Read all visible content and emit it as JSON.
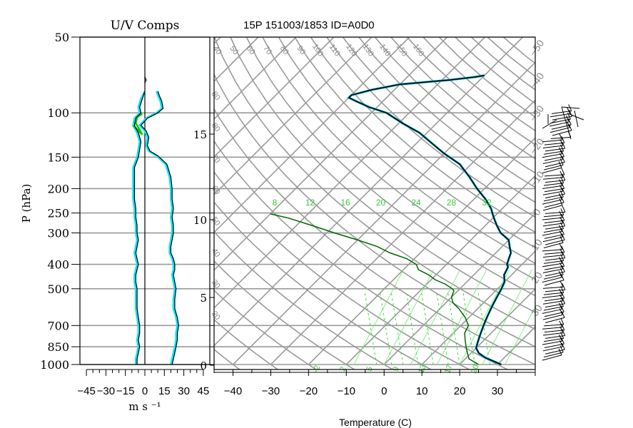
{
  "chart_data": [
    {
      "type": "line",
      "title": "U/V Comps",
      "xlabel": "m s ⁻¹",
      "ylabel": "P (hPa)",
      "xlim": [
        -50,
        50
      ],
      "x_tick_labels": [
        "−45",
        "−30",
        "−15",
        "0",
        "15",
        "30",
        "45"
      ],
      "x_tick_values": [
        -45,
        -30,
        -15,
        0,
        15,
        30,
        45
      ],
      "y_scale": "log",
      "ylim": [
        1000,
        50
      ],
      "y_tick_labels": [
        "50",
        "100",
        "150",
        "200",
        "250",
        "300",
        "400",
        "500",
        "700",
        "850",
        "1000"
      ],
      "y_tick_values": [
        50,
        100,
        150,
        200,
        250,
        300,
        400,
        500,
        700,
        850,
        1000
      ],
      "grid": true,
      "series": [
        {
          "color": "#00e5ff",
          "points": [
            [
              -7,
              1000
            ],
            [
              -7,
              950
            ],
            [
              -6,
              900
            ],
            [
              -5,
              850
            ],
            [
              -6,
              800
            ],
            [
              -5,
              750
            ],
            [
              -5,
              700
            ],
            [
              -6,
              650
            ],
            [
              -7,
              600
            ],
            [
              -7,
              550
            ],
            [
              -7,
              500
            ],
            [
              -8,
              470
            ],
            [
              -8,
              440
            ],
            [
              -7,
              420
            ],
            [
              -6,
              400
            ],
            [
              -7,
              380
            ],
            [
              -8,
              360
            ],
            [
              -7,
              340
            ],
            [
              -6,
              320
            ],
            [
              -7,
              300
            ],
            [
              -7,
              280
            ],
            [
              -8,
              260
            ],
            [
              -8,
              240
            ],
            [
              -9,
              220
            ],
            [
              -9,
              200
            ],
            [
              -9,
              180
            ],
            [
              -9,
              165
            ],
            [
              -6,
              150
            ],
            [
              -5,
              140
            ],
            [
              -4,
              130
            ],
            [
              -6,
              120
            ],
            [
              -9,
              112
            ],
            [
              -8,
              105
            ],
            [
              -4,
              100
            ],
            [
              -5,
              95
            ],
            [
              -3,
              88
            ],
            [
              0,
              82
            ]
          ]
        },
        {
          "color": "#00e5ff",
          "points": [
            [
              20,
              1000
            ],
            [
              21,
              950
            ],
            [
              22,
              900
            ],
            [
              23,
              850
            ],
            [
              24,
              800
            ],
            [
              24,
              750
            ],
            [
              25,
              700
            ],
            [
              24,
              650
            ],
            [
              22,
              600
            ],
            [
              22,
              550
            ],
            [
              23,
              500
            ],
            [
              22,
              470
            ],
            [
              21,
              440
            ],
            [
              22,
              420
            ],
            [
              22,
              400
            ],
            [
              21,
              380
            ],
            [
              19,
              360
            ],
            [
              19,
              340
            ],
            [
              20,
              320
            ],
            [
              21,
              300
            ],
            [
              21,
              280
            ],
            [
              20,
              260
            ],
            [
              21,
              240
            ],
            [
              20,
              220
            ],
            [
              20,
              200
            ],
            [
              19,
              180
            ],
            [
              16,
              160
            ],
            [
              9,
              148
            ],
            [
              3,
              142
            ],
            [
              1,
              135
            ],
            [
              2,
              125
            ],
            [
              0,
              118
            ],
            [
              -4,
              112
            ],
            [
              1,
              105
            ],
            [
              9,
              100
            ],
            [
              13,
              96
            ],
            [
              12,
              90
            ],
            [
              10,
              85
            ],
            [
              9,
              82
            ]
          ]
        },
        {
          "color": "#00cc00",
          "points": [
            [
              -9,
              112
            ],
            [
              -5,
              118
            ],
            [
              -2,
              122
            ],
            [
              -7,
              110
            ],
            [
              -6,
              104
            ],
            [
              -2,
              101
            ]
          ]
        },
        {
          "color": "#000000",
          "points": [
            [
              -6,
              1000
            ],
            [
              -6,
              950
            ],
            [
              -5,
              900
            ],
            [
              -4,
              850
            ],
            [
              -5,
              800
            ],
            [
              -4,
              750
            ],
            [
              -4,
              700
            ],
            [
              -5,
              650
            ],
            [
              -6,
              600
            ],
            [
              -6,
              550
            ],
            [
              -6,
              500
            ],
            [
              -7,
              470
            ],
            [
              -7,
              440
            ],
            [
              -6,
              420
            ],
            [
              -5,
              400
            ],
            [
              -6,
              380
            ],
            [
              -7,
              360
            ],
            [
              -6,
              340
            ],
            [
              -5,
              320
            ],
            [
              -6,
              300
            ],
            [
              -6,
              280
            ],
            [
              -7,
              260
            ],
            [
              -7,
              240
            ],
            [
              -8,
              220
            ],
            [
              -8,
              200
            ],
            [
              -8,
              180
            ],
            [
              -8,
              165
            ],
            [
              -5,
              150
            ],
            [
              -4,
              140
            ],
            [
              -3,
              130
            ],
            [
              -5,
              120
            ],
            [
              -8,
              112
            ],
            [
              -7,
              105
            ],
            [
              -3,
              100
            ],
            [
              -4,
              95
            ],
            [
              -2,
              88
            ],
            [
              0,
              82
            ]
          ]
        },
        {
          "color": "#000000",
          "points": [
            [
              21,
              1000
            ],
            [
              22,
              950
            ],
            [
              23,
              900
            ],
            [
              24,
              850
            ],
            [
              25,
              800
            ],
            [
              25,
              750
            ],
            [
              26,
              700
            ],
            [
              25,
              650
            ],
            [
              23,
              600
            ],
            [
              23,
              550
            ],
            [
              24,
              500
            ],
            [
              23,
              470
            ],
            [
              22,
              440
            ],
            [
              23,
              420
            ],
            [
              23,
              400
            ],
            [
              22,
              380
            ],
            [
              20,
              360
            ],
            [
              20,
              340
            ],
            [
              21,
              320
            ],
            [
              22,
              300
            ],
            [
              22,
              280
            ],
            [
              21,
              260
            ],
            [
              22,
              240
            ],
            [
              21,
              220
            ],
            [
              21,
              200
            ],
            [
              20,
              180
            ],
            [
              17,
              160
            ],
            [
              10,
              148
            ],
            [
              4,
              142
            ],
            [
              2,
              135
            ],
            [
              3,
              125
            ],
            [
              1,
              118
            ],
            [
              -3,
              112
            ],
            [
              2,
              105
            ],
            [
              10,
              100
            ],
            [
              14,
              96
            ],
            [
              13,
              90
            ],
            [
              11,
              85
            ],
            [
              10,
              82
            ]
          ]
        },
        {
          "color": "#000000",
          "points": [
            [
              0,
              76
            ],
            [
              1,
              74
            ],
            [
              0,
              72
            ]
          ]
        }
      ]
    },
    {
      "type": "line",
      "title": "15P 151003/1853 ID=A0D0",
      "xlabel": "Temperature (C)",
      "xlim": [
        -45,
        40
      ],
      "x_tick_labels": [
        "−40",
        "−30",
        "−20",
        "−10",
        "0",
        "10",
        "20",
        "30"
      ],
      "x_tick_values": [
        -40,
        -30,
        -20,
        -10,
        0,
        10,
        20,
        30
      ],
      "y_scale": "log",
      "ylim": [
        1000,
        50
      ],
      "height_km_labels": [
        "0",
        "5",
        "10",
        "15"
      ],
      "height_km_values": [
        0,
        5,
        10,
        15
      ],
      "isotherm_spacing_c": 10,
      "dry_adiabat_labels": [
        "40",
        "50",
        "60",
        "70",
        "80",
        "90",
        "100",
        "110",
        "120",
        "130",
        "140",
        "150",
        "160"
      ],
      "mixing_ratio_labels": [
        "8",
        "12",
        "16",
        "20",
        "24",
        "28",
        "32"
      ],
      "wet_adiabat_labels": [
        "-2",
        "2",
        "5",
        "9",
        "13",
        "17",
        "20"
      ],
      "left_slanted_labels": [
        "80",
        "80",
        "70",
        "60",
        "50",
        "40",
        "30",
        "20"
      ],
      "right_slanted_labels": [
        "−50",
        "−40",
        "−30",
        "−20",
        "−10",
        "0",
        "10",
        "20",
        "30"
      ],
      "series": [
        {
          "color": "#000000",
          "points": [
            [
              31,
              1000
            ],
            [
              25,
              940
            ],
            [
              22,
              900
            ],
            [
              20,
              860
            ],
            [
              19,
              820
            ],
            [
              18,
              780
            ],
            [
              17,
              740
            ],
            [
              16,
              700
            ],
            [
              15,
              660
            ],
            [
              14,
              620
            ],
            [
              13,
              580
            ],
            [
              12,
              540
            ],
            [
              11,
              500
            ],
            [
              10,
              470
            ],
            [
              8,
              440
            ],
            [
              7,
              410
            ],
            [
              6,
              400
            ],
            [
              5,
              380
            ],
            [
              4,
              360
            ],
            [
              2,
              340
            ],
            [
              0,
              320
            ],
            [
              -4,
              300
            ],
            [
              -7,
              280
            ],
            [
              -10,
              260
            ],
            [
              -13,
              240
            ],
            [
              -17,
              220
            ],
            [
              -22,
              200
            ],
            [
              -27,
              180
            ],
            [
              -33,
              160
            ],
            [
              -40,
              145
            ],
            [
              -46,
              132
            ],
            [
              -52,
              120
            ],
            [
              -59,
              110
            ],
            [
              -66,
              100
            ],
            [
              -72,
              95
            ],
            [
              -77,
              90
            ],
            [
              -80,
              87
            ],
            [
              -80,
              85
            ],
            [
              -78,
              83
            ],
            [
              -76,
              81
            ],
            [
              -73,
              79
            ],
            [
              -70,
              77
            ],
            [
              -66,
              76
            ],
            [
              -62,
              75
            ],
            [
              -58,
              74
            ],
            [
              -55,
              73
            ],
            [
              -52,
              72
            ],
            [
              -50,
              71
            ]
          ]
        },
        {
          "color": "#006400",
          "points": [
            [
              25,
              1000
            ],
            [
              21,
              950
            ],
            [
              19,
              900
            ],
            [
              17,
              850
            ],
            [
              15,
              800
            ],
            [
              13,
              750
            ],
            [
              12,
              700
            ],
            [
              9,
              650
            ],
            [
              5,
              600
            ],
            [
              2,
              570
            ],
            [
              0,
              540
            ],
            [
              -1,
              510
            ],
            [
              -2,
              500
            ],
            [
              -5,
              480
            ],
            [
              -9,
              460
            ],
            [
              -12,
              440
            ],
            [
              -16,
              420
            ],
            [
              -18,
              400
            ],
            [
              -22,
              380
            ],
            [
              -28,
              360
            ],
            [
              -33,
              340
            ],
            [
              -40,
              320
            ],
            [
              -48,
              300
            ],
            [
              -56,
              280
            ],
            [
              -64,
              262
            ],
            [
              -70,
              252
            ]
          ]
        }
      ],
      "wind_barb_count": 80
    }
  ]
}
